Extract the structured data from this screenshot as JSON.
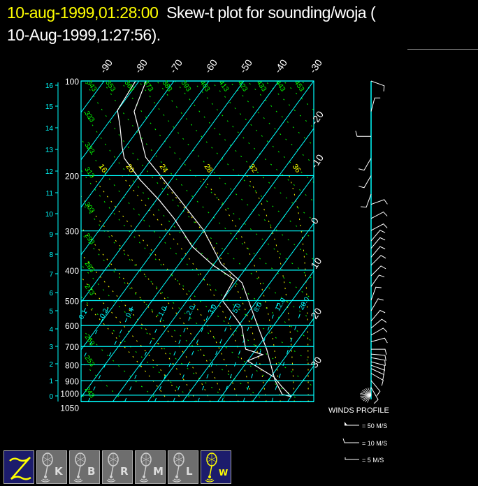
{
  "header": {
    "timestamp": "10-aug-1999,01:28:00",
    "title_line1": "Skew-t plot for sounding/woja (",
    "title_line2": "10-Aug-1999,1:27:56)."
  },
  "colors": {
    "grid": "#00ffff",
    "dry_adiabat": "#00ff00",
    "moist_adiabat": "#ffff00",
    "sounding": "#ffffff",
    "timestamp": "#ffff00",
    "toolbar_active": "#1c1c6c",
    "toolbar_inactive": "#6e6e6e"
  },
  "chart_data": {
    "type": "line",
    "title": "Skew-t plot for sounding/woja",
    "y_scale": "log",
    "ylim": [
      1050,
      100
    ],
    "pressure_ticks": [
      "100",
      "200",
      "300",
      "400",
      "500",
      "600",
      "700",
      "800",
      "900",
      "1000",
      "1050"
    ],
    "height_ticks_km": [
      "0",
      "1",
      "2",
      "3",
      "4",
      "5",
      "6",
      "7",
      "8",
      "9",
      "10",
      "11",
      "12",
      "13",
      "14",
      "15",
      "16"
    ],
    "isotherm_top_labels": [
      "-90",
      "-80",
      "-70",
      "-60",
      "-50",
      "-40",
      "-30"
    ],
    "isotherm_right_labels": [
      "-20",
      "-10",
      "0",
      "10",
      "20",
      "30"
    ],
    "dry_adiabat_left_labels": [
      "333",
      "323",
      "313",
      "303",
      "293",
      "283",
      "273",
      "263",
      "253",
      "243"
    ],
    "dry_adiabat_top_labels": [
      "343",
      "353",
      "363",
      "373",
      "383",
      "393",
      "403",
      "413",
      "423",
      "433",
      "443",
      "453"
    ],
    "moist_adiabat_labels": [
      "16",
      "20",
      "24",
      "28",
      "32",
      "36"
    ],
    "mixing_ratio_labels": [
      "0.1",
      "0.2",
      "0.4",
      "1.0",
      "2.0",
      "3.0",
      "5.0",
      "8.0",
      "12.0",
      "20.0"
    ],
    "series": [
      {
        "pressure": [
          100,
          125,
          175,
          240,
          299,
          382,
          439,
          581,
          714,
          898,
          995,
          1010
        ],
        "temperature": [
          -78,
          -75,
          -62,
          -43,
          -30,
          -18,
          -8,
          4,
          13,
          22,
          27,
          30
        ]
      },
      {
        "pressure": [
          100,
          124,
          139,
          162,
          176,
          206,
          240,
          274,
          336,
          386,
          428,
          499,
          553,
          603,
          714,
          743,
          778,
          876,
          936,
          1010
        ],
        "temperature": [
          -81,
          -80,
          -76,
          -71,
          -68,
          -59,
          -49,
          -41,
          -30,
          -20,
          -11,
          -10,
          -4,
          1,
          7,
          13,
          10,
          21,
          25,
          30
        ]
      }
    ],
    "winds": {
      "title": "WINDS PROFILE",
      "pressure": [
        100,
        125,
        150,
        176,
        200,
        229,
        247,
        274,
        299,
        323,
        341,
        364,
        386,
        417,
        451,
        499,
        539,
        581,
        612,
        644,
        676,
        714,
        740,
        760,
        783,
        803,
        823,
        852,
        898,
        945
      ],
      "direction_deg": [
        110,
        15,
        270,
        210,
        210,
        200,
        70,
        62,
        62,
        40,
        40,
        40,
        45,
        45,
        35,
        20,
        30,
        40,
        50,
        60,
        75,
        90,
        95,
        100,
        105,
        110,
        115,
        120,
        140,
        150
      ],
      "legend": [
        {
          "label": "= 50 M/S",
          "speed": 50
        },
        {
          "label": "= 10 M/S",
          "speed": 10
        },
        {
          "label": "= 5 M/S",
          "speed": 5
        }
      ]
    }
  },
  "toolbar": [
    {
      "id": "z",
      "letter": "",
      "active": true
    },
    {
      "id": "k",
      "letter": "K",
      "active": false
    },
    {
      "id": "b",
      "letter": "B",
      "active": false
    },
    {
      "id": "r",
      "letter": "R",
      "active": false
    },
    {
      "id": "m",
      "letter": "M",
      "active": false
    },
    {
      "id": "l",
      "letter": "L",
      "active": false
    },
    {
      "id": "w",
      "letter": "W",
      "active": true
    }
  ]
}
